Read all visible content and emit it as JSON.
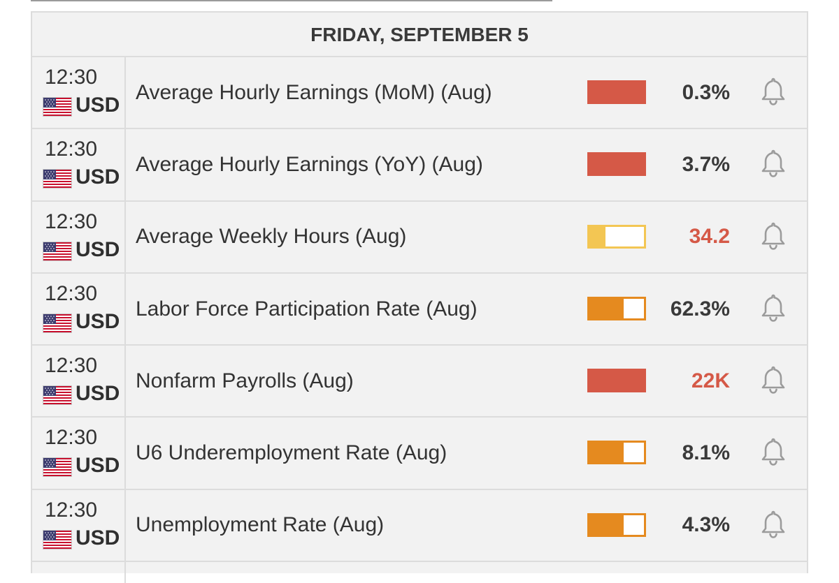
{
  "day_header": "FRIDAY, SEPTEMBER 5",
  "colors": {
    "high_impact": "#d55947",
    "medium_impact": "#e58a1f",
    "low_impact": "#f3c653",
    "value_dark": "#3a3a3a",
    "value_red": "#d55947"
  },
  "events": [
    {
      "time": "12:30",
      "currency": "USD",
      "flag": "us-flag-icon",
      "name": "Average Hourly Earnings (MoM) (Aug)",
      "impact": "high",
      "impact_level": 1.0,
      "value": "0.3%",
      "value_color": "#3a3a3a",
      "bell": "bell-icon"
    },
    {
      "time": "12:30",
      "currency": "USD",
      "flag": "us-flag-icon",
      "name": "Average Hourly Earnings (YoY) (Aug)",
      "impact": "high",
      "impact_level": 1.0,
      "value": "3.7%",
      "value_color": "#3a3a3a",
      "bell": "bell-icon"
    },
    {
      "time": "12:30",
      "currency": "USD",
      "flag": "us-flag-icon",
      "name": "Average Weekly Hours (Aug)",
      "impact": "low",
      "impact_level": 0.3,
      "value": "34.2",
      "value_color": "#d55947",
      "bell": "bell-icon"
    },
    {
      "time": "12:30",
      "currency": "USD",
      "flag": "us-flag-icon",
      "name": "Labor Force Participation Rate (Aug)",
      "impact": "medium",
      "impact_level": 0.63,
      "value": "62.3%",
      "value_color": "#3a3a3a",
      "bell": "bell-icon"
    },
    {
      "time": "12:30",
      "currency": "USD",
      "flag": "us-flag-icon",
      "name": "Nonfarm Payrolls (Aug)",
      "impact": "high",
      "impact_level": 1.0,
      "value": "22K",
      "value_color": "#d55947",
      "bell": "bell-icon"
    },
    {
      "time": "12:30",
      "currency": "USD",
      "flag": "us-flag-icon",
      "name": "U6 Underemployment Rate (Aug)",
      "impact": "medium",
      "impact_level": 0.63,
      "value": "8.1%",
      "value_color": "#3a3a3a",
      "bell": "bell-icon"
    },
    {
      "time": "12:30",
      "currency": "USD",
      "flag": "us-flag-icon",
      "name": "Unemployment Rate (Aug)",
      "impact": "medium",
      "impact_level": 0.63,
      "value": "4.3%",
      "value_color": "#3a3a3a",
      "bell": "bell-icon"
    }
  ]
}
